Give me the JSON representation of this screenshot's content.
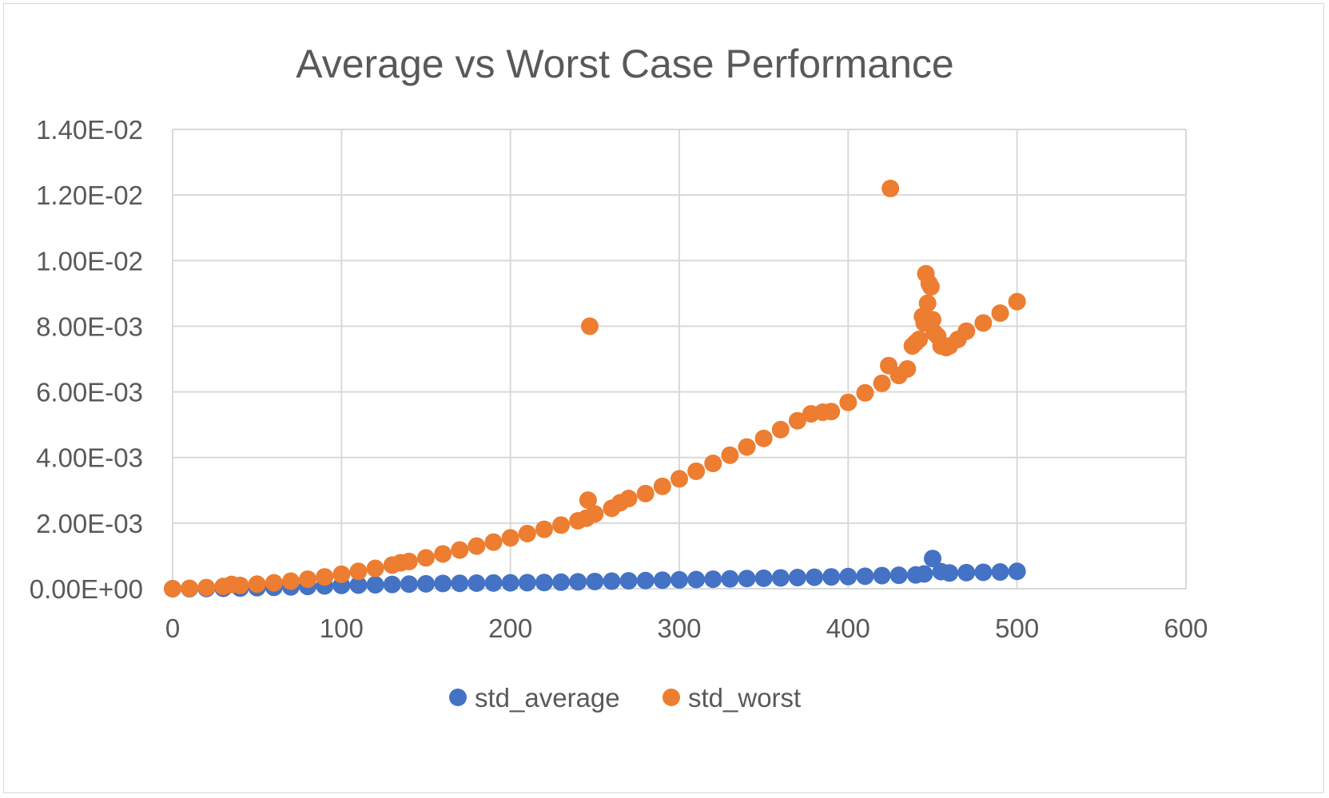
{
  "chart_data": {
    "type": "scatter",
    "title": "Average vs Worst Case Performance",
    "xlabel": "",
    "ylabel": "",
    "xlim": [
      0,
      600
    ],
    "ylim": [
      0,
      0.014
    ],
    "x_ticks": [
      0,
      100,
      200,
      300,
      400,
      500,
      600
    ],
    "y_ticks": [
      0,
      0.002,
      0.004,
      0.006,
      0.008,
      0.01,
      0.012,
      0.014
    ],
    "x_tick_labels": [
      "0",
      "100",
      "200",
      "300",
      "400",
      "500",
      "600"
    ],
    "y_tick_labels": [
      "0.00E+00",
      "2.00E-03",
      "4.00E-03",
      "6.00E-03",
      "8.00E-03",
      "1.00E-02",
      "1.20E-02",
      "1.40E-02"
    ],
    "grid": true,
    "legend_position": "bottom",
    "series": [
      {
        "name": "std_average",
        "color": "#4472c4",
        "x": [
          0,
          10,
          20,
          30,
          40,
          50,
          60,
          70,
          80,
          90,
          100,
          110,
          120,
          130,
          140,
          150,
          160,
          170,
          180,
          190,
          200,
          210,
          220,
          230,
          240,
          250,
          260,
          270,
          280,
          290,
          300,
          310,
          320,
          330,
          340,
          350,
          360,
          370,
          380,
          390,
          400,
          410,
          420,
          430,
          440,
          445,
          450,
          455,
          460,
          470,
          480,
          490,
          500
        ],
        "y": [
          0,
          2e-06,
          6e-06,
          1.2e-05,
          2e-05,
          3e-05,
          4.2e-05,
          5.5e-05,
          7e-05,
          8.5e-05,
          0.0001,
          0.00011,
          0.00012,
          0.00013,
          0.00014,
          0.00015,
          0.00016,
          0.000165,
          0.00017,
          0.000175,
          0.00018,
          0.000185,
          0.00019,
          0.0002,
          0.00021,
          0.00022,
          0.00023,
          0.00024,
          0.00025,
          0.00026,
          0.00027,
          0.00028,
          0.00029,
          0.0003,
          0.00031,
          0.00032,
          0.00033,
          0.00034,
          0.00035,
          0.00036,
          0.00037,
          0.00038,
          0.0004,
          0.00041,
          0.00042,
          0.00045,
          0.00092,
          0.00052,
          0.00048,
          0.00049,
          0.0005,
          0.00051,
          0.00053
        ]
      },
      {
        "name": "std_worst",
        "color": "#ed7d31",
        "x": [
          0,
          10,
          20,
          30,
          35,
          40,
          50,
          60,
          70,
          80,
          90,
          100,
          110,
          120,
          130,
          135,
          140,
          150,
          160,
          170,
          180,
          190,
          200,
          210,
          220,
          230,
          240,
          245,
          246,
          247,
          250,
          260,
          265,
          270,
          280,
          290,
          300,
          310,
          320,
          330,
          340,
          350,
          360,
          370,
          378,
          385,
          390,
          400,
          410,
          420,
          424,
          425,
          430,
          435,
          438,
          440,
          442,
          444,
          445,
          446,
          447,
          448,
          449,
          450,
          451,
          453,
          455,
          458,
          460,
          465,
          470,
          480,
          490,
          500
        ],
        "y": [
          0,
          1.2e-05,
          3.5e-05,
          7e-05,
          0.00013,
          0.0001,
          0.00014,
          0.00018,
          0.00023,
          0.00029,
          0.00036,
          0.00044,
          0.00053,
          0.00062,
          0.00072,
          0.00079,
          0.00083,
          0.00094,
          0.00106,
          0.00118,
          0.0013,
          0.00142,
          0.00155,
          0.00168,
          0.00181,
          0.00194,
          0.00207,
          0.00215,
          0.0027,
          0.008,
          0.00228,
          0.00245,
          0.00262,
          0.00275,
          0.0029,
          0.00312,
          0.00335,
          0.00358,
          0.00382,
          0.00407,
          0.00432,
          0.00458,
          0.00485,
          0.00512,
          0.00533,
          0.00538,
          0.0054,
          0.00568,
          0.00597,
          0.00626,
          0.0068,
          0.0122,
          0.0065,
          0.0067,
          0.0074,
          0.0075,
          0.0076,
          0.0083,
          0.0081,
          0.0096,
          0.0087,
          0.0093,
          0.0092,
          0.0082,
          0.0078,
          0.0077,
          0.0074,
          0.00735,
          0.0074,
          0.0076,
          0.00785,
          0.0081,
          0.0084,
          0.00875
        ]
      }
    ]
  }
}
